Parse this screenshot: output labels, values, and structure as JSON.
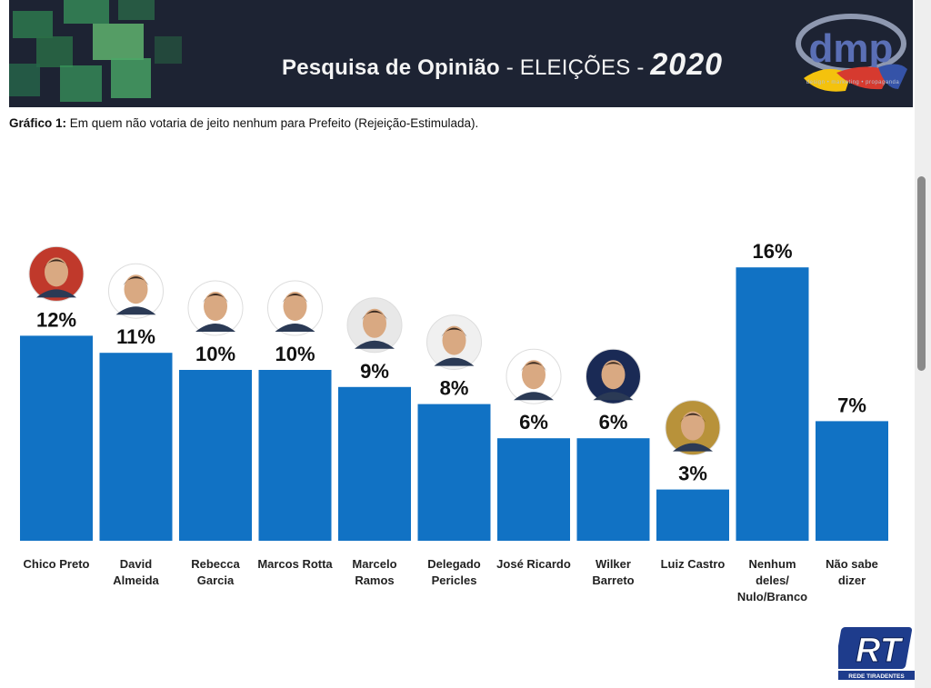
{
  "banner": {
    "title_part1": "Pesquisa de Opinião",
    "title_part2": " - ELEIÇÕES - ",
    "title_year": "2020",
    "logo_text": "dmp",
    "logo_tagline": "design • marketing • propaganda"
  },
  "subtitle": {
    "label": "Gráfico 1:",
    "text": "  Em quem não votaria de jeito nenhum para Prefeito (Rejeição-Estimulada)."
  },
  "chart_data": {
    "type": "bar",
    "categories": [
      [
        "Chico Preto"
      ],
      [
        "David",
        "Almeida"
      ],
      [
        "Rebecca",
        "Garcia"
      ],
      [
        "Marcos Rotta"
      ],
      [
        "Marcelo",
        "Ramos"
      ],
      [
        "Delegado",
        "Pericles"
      ],
      [
        "José Ricardo"
      ],
      [
        "Wilker",
        "Barreto"
      ],
      [
        "Luiz Castro"
      ],
      [
        "Nenhum",
        "deles/",
        "Nulo/Branco"
      ],
      [
        "Não sabe",
        "dizer"
      ]
    ],
    "values": [
      12,
      11,
      10,
      10,
      9,
      8,
      6,
      6,
      3,
      16,
      7
    ],
    "value_labels": [
      "12%",
      "11%",
      "10%",
      "10%",
      "9%",
      "8%",
      "6%",
      "6%",
      "3%",
      "16%",
      "7%"
    ],
    "has_photo": [
      true,
      true,
      true,
      true,
      true,
      true,
      true,
      true,
      true,
      false,
      false
    ],
    "photo_ring_colors": [
      "#c0392b",
      "#ffffff",
      "#ffffff",
      "#ffffff",
      "#e8e8e8",
      "#f0f0f0",
      "#ffffff",
      "#1a2a55",
      "#b8923a",
      "",
      ""
    ],
    "bar_color": "#1172c4",
    "ylim": [
      0,
      16
    ]
  },
  "watermark": {
    "text": "RT",
    "caption": "REDE TIRADENTES"
  }
}
